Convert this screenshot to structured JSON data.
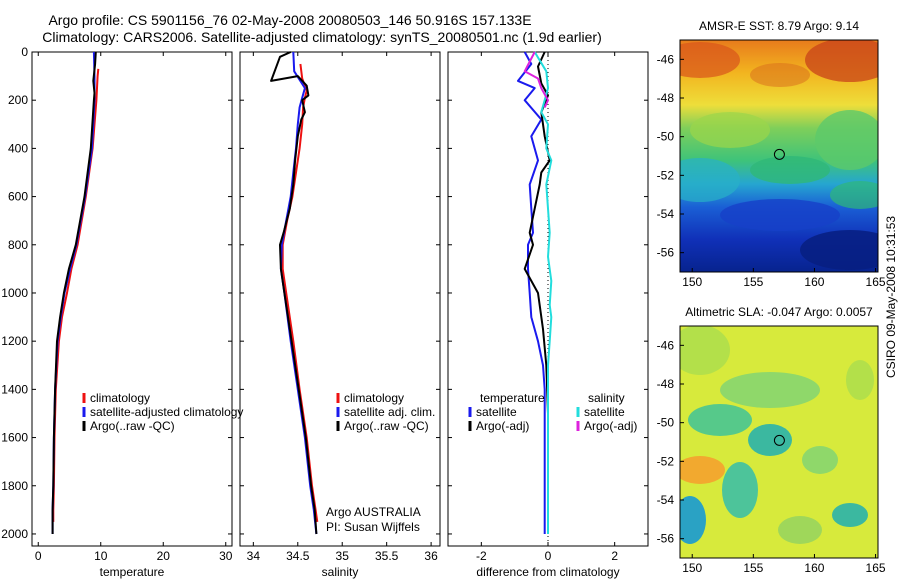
{
  "figure": {
    "title_line1": "Argo profile: CS 5901156_76 02-May-2008 20080503_146 50.916S 157.133E",
    "title_line2": "Climatology: CARS2006. Satellite-adjusted climatology: synTS_20080501.nc (1.9d earlier)",
    "stamp": "CSIRO 09-May-2008 10:31:53"
  },
  "chart_data": [
    {
      "type": "line",
      "id": "temperature",
      "xlabel": "temperature",
      "ylabel": "",
      "xlim": [
        -1,
        31
      ],
      "ylim": [
        2050,
        0
      ],
      "xticks": [
        0,
        10,
        20,
        30
      ],
      "yticks": [
        0,
        200,
        400,
        600,
        800,
        1000,
        1200,
        1400,
        1600,
        1800,
        2000
      ],
      "legend": [
        "climatology",
        "satellite-adjusted climatology",
        "Argo(..raw -QC)"
      ],
      "series": [
        {
          "name": "climatology",
          "color": "#ee1111",
          "x": [
            9.6,
            9.5,
            9.3,
            8.7,
            7.6,
            6.3,
            5.3,
            4.6,
            3.8,
            3.3,
            2.8,
            2.6,
            2.5,
            2.4,
            2.4
          ],
          "y": [
            70,
            100,
            200,
            400,
            600,
            800,
            900,
            1000,
            1100,
            1200,
            1400,
            1600,
            1800,
            1900,
            1950
          ]
        },
        {
          "name": "satellite-adjusted climatology",
          "color": "#1a1aee",
          "x": [
            8.9,
            9.0,
            9.0,
            8.6,
            7.5,
            6.1,
            5.1,
            4.2,
            3.6,
            3.1,
            2.7,
            2.5,
            2.4,
            2.3,
            2.3
          ],
          "y": [
            0,
            100,
            200,
            400,
            600,
            800,
            900,
            1000,
            1100,
            1200,
            1400,
            1600,
            1800,
            1900,
            2000
          ]
        },
        {
          "name": "Argo(..raw -QC)",
          "color": "#000000",
          "x": [
            9.2,
            9.1,
            8.8,
            9.0,
            8.9,
            8.4,
            7.4,
            6.0,
            4.9,
            4.1,
            3.5,
            3.0,
            2.7,
            2.5,
            2.4,
            2.3,
            2.3
          ],
          "y": [
            0,
            50,
            120,
            170,
            200,
            400,
            600,
            800,
            900,
            1000,
            1100,
            1200,
            1400,
            1600,
            1800,
            1900,
            2000
          ]
        }
      ]
    },
    {
      "type": "line",
      "id": "salinity",
      "xlabel": "salinity",
      "xlim": [
        33.85,
        36.1
      ],
      "ylim": [
        2050,
        0
      ],
      "xticks": [
        34,
        34.5,
        35,
        35.5,
        36
      ],
      "legend": [
        "climatology",
        "satellite adj. clim.",
        "Argo(..raw -QC)"
      ],
      "annotation": [
        "Argo AUSTRALIA",
        "PI: Susan Wijffels"
      ],
      "series": [
        {
          "name": "climatology",
          "color": "#ee1111",
          "x": [
            34.53,
            34.55,
            34.6,
            34.58,
            34.56,
            34.55,
            34.52,
            34.48,
            34.44,
            34.38,
            34.33,
            34.33,
            34.37,
            34.45,
            34.52,
            34.6,
            34.66,
            34.7,
            34.72
          ],
          "y": [
            50,
            110,
            160,
            190,
            230,
            300,
            400,
            500,
            600,
            700,
            800,
            900,
            1000,
            1200,
            1400,
            1600,
            1800,
            1900,
            1950
          ]
        },
        {
          "name": "satellite adj. clim.",
          "color": "#1a1aee",
          "x": [
            34.45,
            34.46,
            34.58,
            34.55,
            34.52,
            34.5,
            34.48,
            34.45,
            34.42,
            34.37,
            34.32,
            34.31,
            34.35,
            34.42,
            34.5,
            34.58,
            34.64,
            34.68,
            34.71
          ],
          "y": [
            0,
            80,
            150,
            190,
            230,
            300,
            400,
            500,
            600,
            700,
            800,
            900,
            1000,
            1200,
            1400,
            1600,
            1800,
            1900,
            2000
          ]
        },
        {
          "name": "Argo(..raw -QC)",
          "color": "#000000",
          "x": [
            34.42,
            34.3,
            34.2,
            34.5,
            34.6,
            34.62,
            34.55,
            34.58,
            34.54,
            34.5,
            34.47,
            34.45,
            34.41,
            34.34,
            34.3,
            34.31,
            34.35,
            34.43,
            34.51,
            34.59,
            34.65,
            34.69,
            34.71
          ],
          "y": [
            0,
            20,
            120,
            100,
            140,
            180,
            200,
            250,
            280,
            350,
            450,
            550,
            650,
            750,
            800,
            900,
            1000,
            1200,
            1400,
            1600,
            1800,
            1900,
            2000
          ]
        }
      ]
    },
    {
      "type": "line",
      "id": "difference",
      "xlabel": "difference from climatology",
      "xlim": [
        -3,
        3
      ],
      "ylim": [
        2050,
        0
      ],
      "xticks": [
        -2,
        0,
        2
      ],
      "legend_temperature": [
        "temperature",
        "satellite",
        "Argo(-adj)"
      ],
      "legend_salinity": [
        "salinity",
        "satellite",
        "Argo(-adj)"
      ],
      "series": [
        {
          "name": "temperature satellite",
          "color": "#1a1aee",
          "x": [
            -0.7,
            -0.5,
            -0.9,
            -0.4,
            -0.7,
            -0.2,
            -0.5,
            -0.3,
            -0.55,
            -0.5,
            -0.45,
            -0.6,
            -0.6,
            -0.55,
            -0.5,
            -0.3,
            -0.15,
            -0.1,
            -0.1,
            -0.1,
            -0.1,
            -0.1,
            -0.1
          ],
          "y": [
            0,
            50,
            120,
            150,
            200,
            280,
            350,
            450,
            550,
            650,
            750,
            800,
            900,
            1000,
            1100,
            1200,
            1300,
            1400,
            1500,
            1600,
            1800,
            1900,
            2000
          ]
        },
        {
          "name": "temperature Argo(-adj)",
          "color": "#000000",
          "x": [
            -0.1,
            -0.3,
            -0.2,
            0.0,
            -0.2,
            -0.1,
            0.05,
            -0.2,
            -0.25,
            -0.4,
            -0.55,
            -0.45,
            -0.7,
            -0.3,
            -0.15,
            -0.05,
            0.0,
            0.0,
            0.0,
            0.0
          ],
          "y": [
            0,
            60,
            130,
            180,
            250,
            350,
            450,
            500,
            550,
            650,
            750,
            800,
            900,
            1000,
            1150,
            1300,
            1500,
            1700,
            1900,
            2000
          ]
        },
        {
          "name": "salinity satellite",
          "color": "#22dddd",
          "x": [
            -0.4,
            -0.05,
            0.0,
            -0.1,
            -0.2,
            0.0,
            -0.05,
            0.1,
            -0.05,
            0.0,
            0.05,
            0.0,
            0.1,
            0.05,
            0.1,
            0.05,
            0.0,
            0.0,
            0.0
          ],
          "y": [
            0,
            80,
            150,
            200,
            250,
            300,
            400,
            450,
            550,
            650,
            750,
            850,
            950,
            1050,
            1100,
            1200,
            1300,
            1600,
            2000
          ]
        },
        {
          "name": "salinity Argo(-adj)",
          "color": "#dd22dd",
          "x": [
            -0.4,
            -0.7,
            -0.3,
            -0.2,
            0.0,
            -0.1
          ],
          "y": [
            0,
            80,
            110,
            150,
            200,
            230
          ]
        }
      ]
    },
    {
      "type": "heatmap",
      "id": "sst",
      "title": "AMSR-E SST: 8.79 Argo: 9.14",
      "xlim": [
        149,
        165.2
      ],
      "ylim": [
        -57,
        -45
      ],
      "xticks": [
        150,
        155,
        160,
        165
      ],
      "yticks": [
        -46,
        -48,
        -50,
        -52,
        -54,
        -56
      ],
      "marker": {
        "lon": 157.133,
        "lat": -50.916
      }
    },
    {
      "type": "heatmap",
      "id": "sla",
      "title": "Altimetric SLA: -0.047 Argo: 0.0057",
      "xlim": [
        149,
        165.2
      ],
      "ylim": [
        -57,
        -45
      ],
      "xticks": [
        150,
        155,
        160,
        165
      ],
      "yticks": [
        -46,
        -48,
        -50,
        -52,
        -54,
        -56
      ],
      "marker": {
        "lon": 157.133,
        "lat": -50.916
      }
    }
  ]
}
